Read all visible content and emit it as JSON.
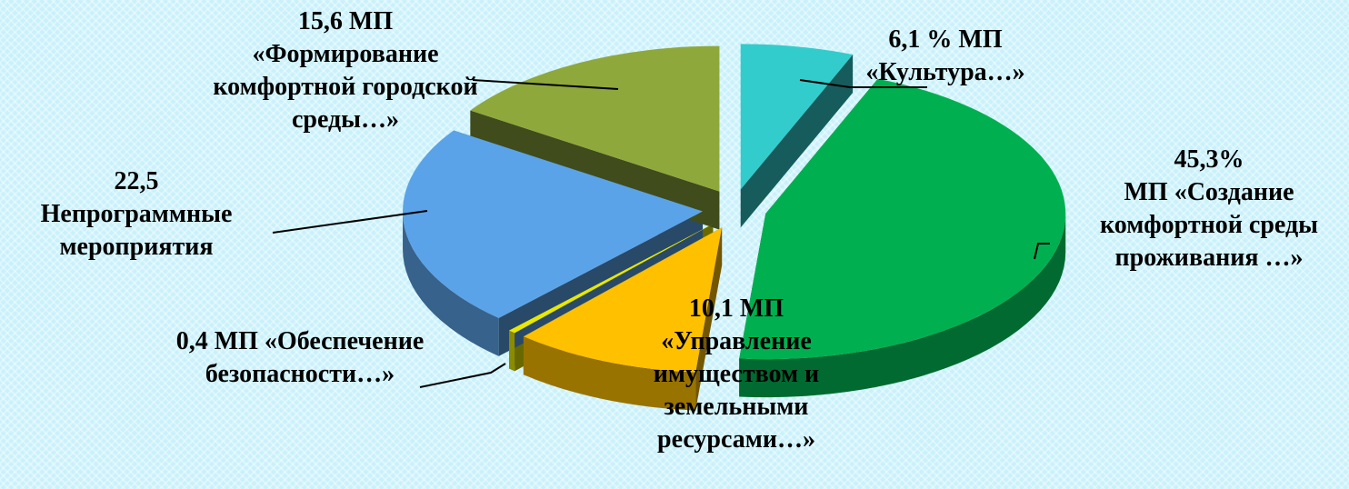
{
  "chart_data": {
    "type": "pie",
    "categories": [
      "МП «Культура…»",
      "МП «Создание комфортной среды проживания …»",
      "МП «Управление имуществом и земельными ресурсами…»",
      "МП «Обеспечение безопасности…»",
      "Непрограммные мероприятия",
      "МП «Формирование комфортной городской среды…»"
    ],
    "values": [
      6.1,
      45.3,
      10.1,
      0.4,
      22.5,
      15.6
    ],
    "value_labels": [
      "6,1 %",
      "45,3%",
      "10,1",
      "0,4",
      "22,5",
      "15,6"
    ],
    "colors": [
      "#33cccc",
      "#00b050",
      "#ffc000",
      "#e8e800",
      "#5ba3e8",
      "#8fa83c"
    ]
  }
}
